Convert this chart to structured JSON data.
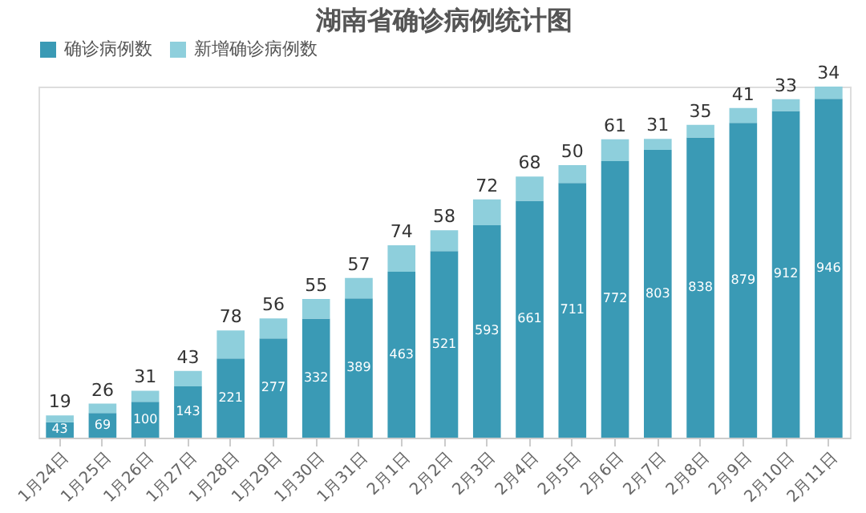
{
  "chart_data": {
    "type": "bar",
    "title": "湖南省确诊病例统计图",
    "stacked": true,
    "data_labels": true,
    "legend": "top",
    "grid": false,
    "categories": [
      "1月24日",
      "1月25日",
      "1月26日",
      "1月27日",
      "1月28日",
      "1月29日",
      "1月30日",
      "1月31日",
      "2月1日",
      "2月2日",
      "2月3日",
      "2月4日",
      "2月5日",
      "2月6日",
      "2月7日",
      "2月8日",
      "2月9日",
      "2月10日",
      "2月11日"
    ],
    "series": [
      {
        "name": "确诊病例数",
        "color": "#3a9ab5",
        "values": [
          43,
          69,
          100,
          143,
          221,
          277,
          332,
          389,
          463,
          521,
          593,
          661,
          711,
          772,
          803,
          838,
          879,
          912,
          946
        ]
      },
      {
        "name": "新增确诊病例数",
        "color": "#8ecfdc",
        "values": [
          19,
          26,
          31,
          43,
          78,
          56,
          55,
          57,
          74,
          58,
          72,
          68,
          50,
          61,
          31,
          35,
          41,
          33,
          34
        ]
      }
    ]
  }
}
